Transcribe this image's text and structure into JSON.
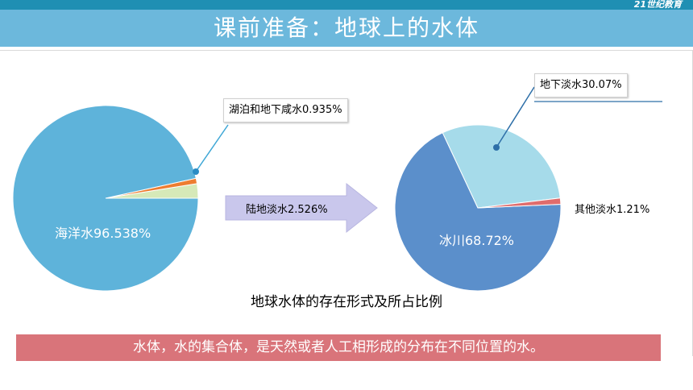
{
  "header": {
    "title": "课前准备：地球上的水体",
    "logo_text": "21世纪教育"
  },
  "chart_data": [
    {
      "type": "pie",
      "categories": [
        "海洋水",
        "湖泊和地下咸水",
        "陆地淡水"
      ],
      "values": [
        96.538,
        0.935,
        2.526
      ],
      "colors": [
        "#5eb3da",
        "#ed7d31",
        "#d6e9b8"
      ],
      "labels": [
        "海洋水96.538%",
        "湖泊和地下咸水0.935%"
      ]
    },
    {
      "type": "pie",
      "categories": [
        "冰川",
        "地下淡水",
        "其他淡水"
      ],
      "values": [
        68.72,
        30.07,
        1.21
      ],
      "colors": [
        "#5b8fcb",
        "#a6dbea",
        "#e06c6c"
      ],
      "labels": [
        "冰川68.72%",
        "地下淡水30.07%",
        "其他淡水1.21%"
      ]
    }
  ],
  "arrow": {
    "label": "陆地淡水2.526%"
  },
  "caption": "地球水体的存在形式及所占比例",
  "banner": "水体，水的集合体，是天然或者人工相形成的分布在不同位置的水。"
}
